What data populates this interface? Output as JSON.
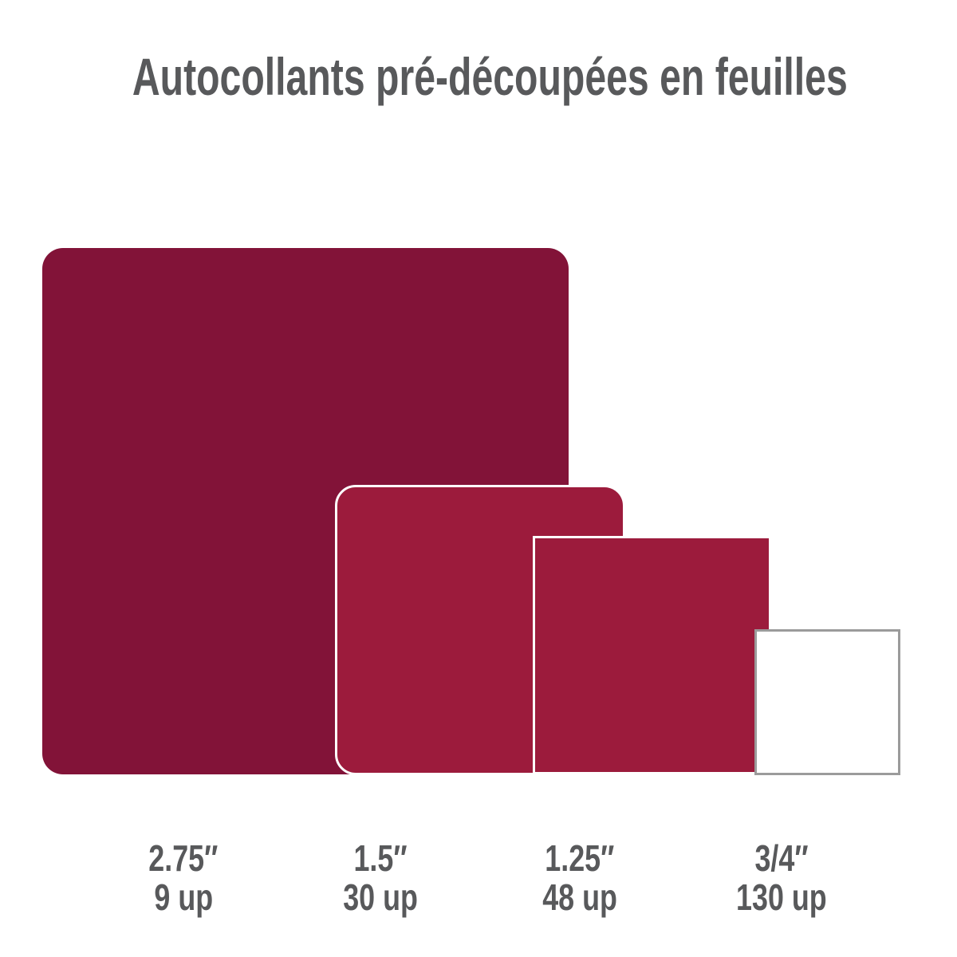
{
  "title": "Autocollants pré-découpées en feuilles",
  "colors": {
    "title_text": "#58595B",
    "label_text": "#58595B",
    "background": "#FFFFFF",
    "dark_red": "#821338",
    "crimson": "#9C1B3C",
    "gray_border": "#9B9B9B",
    "white_border": "#FFFFFF"
  },
  "stickers": [
    {
      "size_label": "2.75″",
      "count_label": "9 up",
      "fill": "#821338",
      "border_color": ""
    },
    {
      "size_label": "1.5″",
      "count_label": "30 up",
      "fill": "#9C1B3C",
      "border_color": "#FFFFFF"
    },
    {
      "size_label": "1.25″",
      "count_label": "48 up",
      "fill": "#9C1B3C",
      "border_color": "#FFFFFF"
    },
    {
      "size_label": "3/4″",
      "count_label": "130 up",
      "fill": "#FFFFFF",
      "border_color": "#9B9B9B"
    }
  ]
}
